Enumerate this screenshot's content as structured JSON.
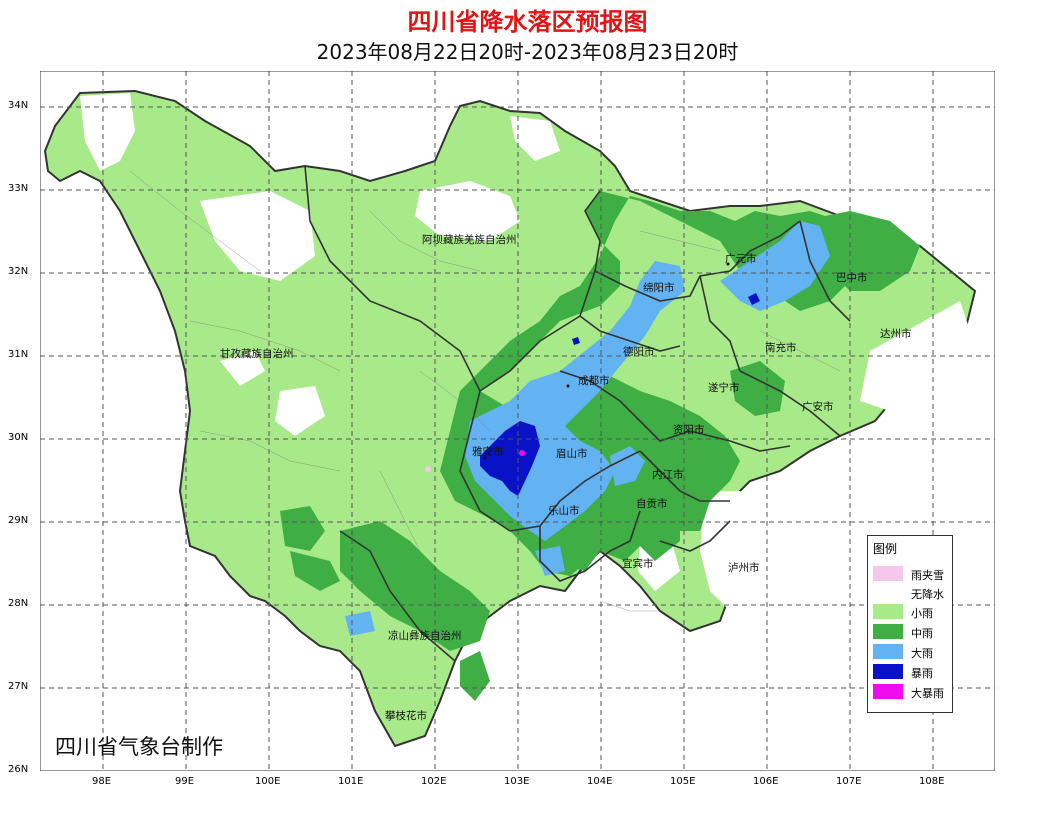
{
  "title": "四川省降水落区预报图",
  "subtitle": "2023年08月22日20时-2023年08月23日20时",
  "credit": "四川省气象台制作",
  "axes": {
    "lat_labels": [
      "34N",
      "33N",
      "32N",
      "31N",
      "30N",
      "29N",
      "28N",
      "27N",
      "26N"
    ],
    "lon_labels": [
      "98E",
      "99E",
      "100E",
      "101E",
      "102E",
      "103E",
      "104E",
      "105E",
      "106E",
      "107E",
      "108E"
    ]
  },
  "colors": {
    "snow_rain": "#f7c6ec",
    "none": "#ffffff",
    "light": "#a8ea8a",
    "moderate": "#3eae45",
    "heavy": "#63b3f2",
    "rainstorm": "#0a12c8",
    "heavy_rainstorm": "#f00af0",
    "boundary": "#333333",
    "title": "#e01515"
  },
  "legend": {
    "title": "图例",
    "items": [
      {
        "label": "雨夹雪",
        "color": "#f7c6ec"
      },
      {
        "label": "无降水",
        "color": "#ffffff"
      },
      {
        "label": "小雨",
        "color": "#a8ea8a"
      },
      {
        "label": "中雨",
        "color": "#3eae45"
      },
      {
        "label": "大雨",
        "color": "#63b3f2"
      },
      {
        "label": "暴雨",
        "color": "#0a12c8"
      },
      {
        "label": "大暴雨",
        "color": "#f00af0"
      }
    ]
  },
  "regions": [
    {
      "name": "阿坝藏族羌族自治州"
    },
    {
      "name": "甘孜藏族自治州"
    },
    {
      "name": "广元市"
    },
    {
      "name": "巴中市"
    },
    {
      "name": "绵阳市"
    },
    {
      "name": "达州市"
    },
    {
      "name": "德阳市"
    },
    {
      "name": "南充市"
    },
    {
      "name": "成都市"
    },
    {
      "name": "遂宁市"
    },
    {
      "name": "广安市"
    },
    {
      "name": "资阳市"
    },
    {
      "name": "雅安市"
    },
    {
      "name": "眉山市"
    },
    {
      "name": "内江市"
    },
    {
      "name": "自贡市"
    },
    {
      "name": "乐山市"
    },
    {
      "name": "宜宾市"
    },
    {
      "name": "泸州市"
    },
    {
      "name": "凉山彝族自治州"
    },
    {
      "name": "攀枝花市"
    }
  ]
}
